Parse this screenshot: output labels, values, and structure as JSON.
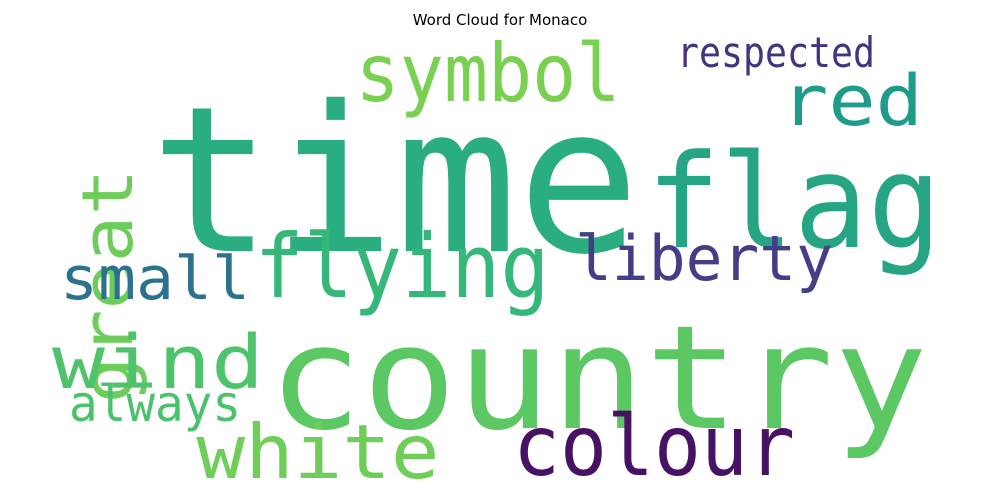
{
  "title": "Word Cloud for Monaco",
  "words": [
    {
      "text": "time",
      "color": "#2AAD7F"
    },
    {
      "text": "country",
      "color": "#5CC863"
    },
    {
      "text": "flag",
      "color": "#25A584"
    },
    {
      "text": "symbol",
      "color": "#7AD151"
    },
    {
      "text": "red",
      "color": "#1E9C89"
    },
    {
      "text": "respected",
      "color": "#46337E"
    },
    {
      "text": "great",
      "color": "#6CCD5A"
    },
    {
      "text": "flying",
      "color": "#35B779"
    },
    {
      "text": "liberty",
      "color": "#433E85"
    },
    {
      "text": "small",
      "color": "#2C728E"
    },
    {
      "text": "wind",
      "color": "#4EC36B"
    },
    {
      "text": "always",
      "color": "#4AC16D"
    },
    {
      "text": "white",
      "color": "#6ECE58"
    },
    {
      "text": "colour",
      "color": "#471164"
    }
  ]
}
